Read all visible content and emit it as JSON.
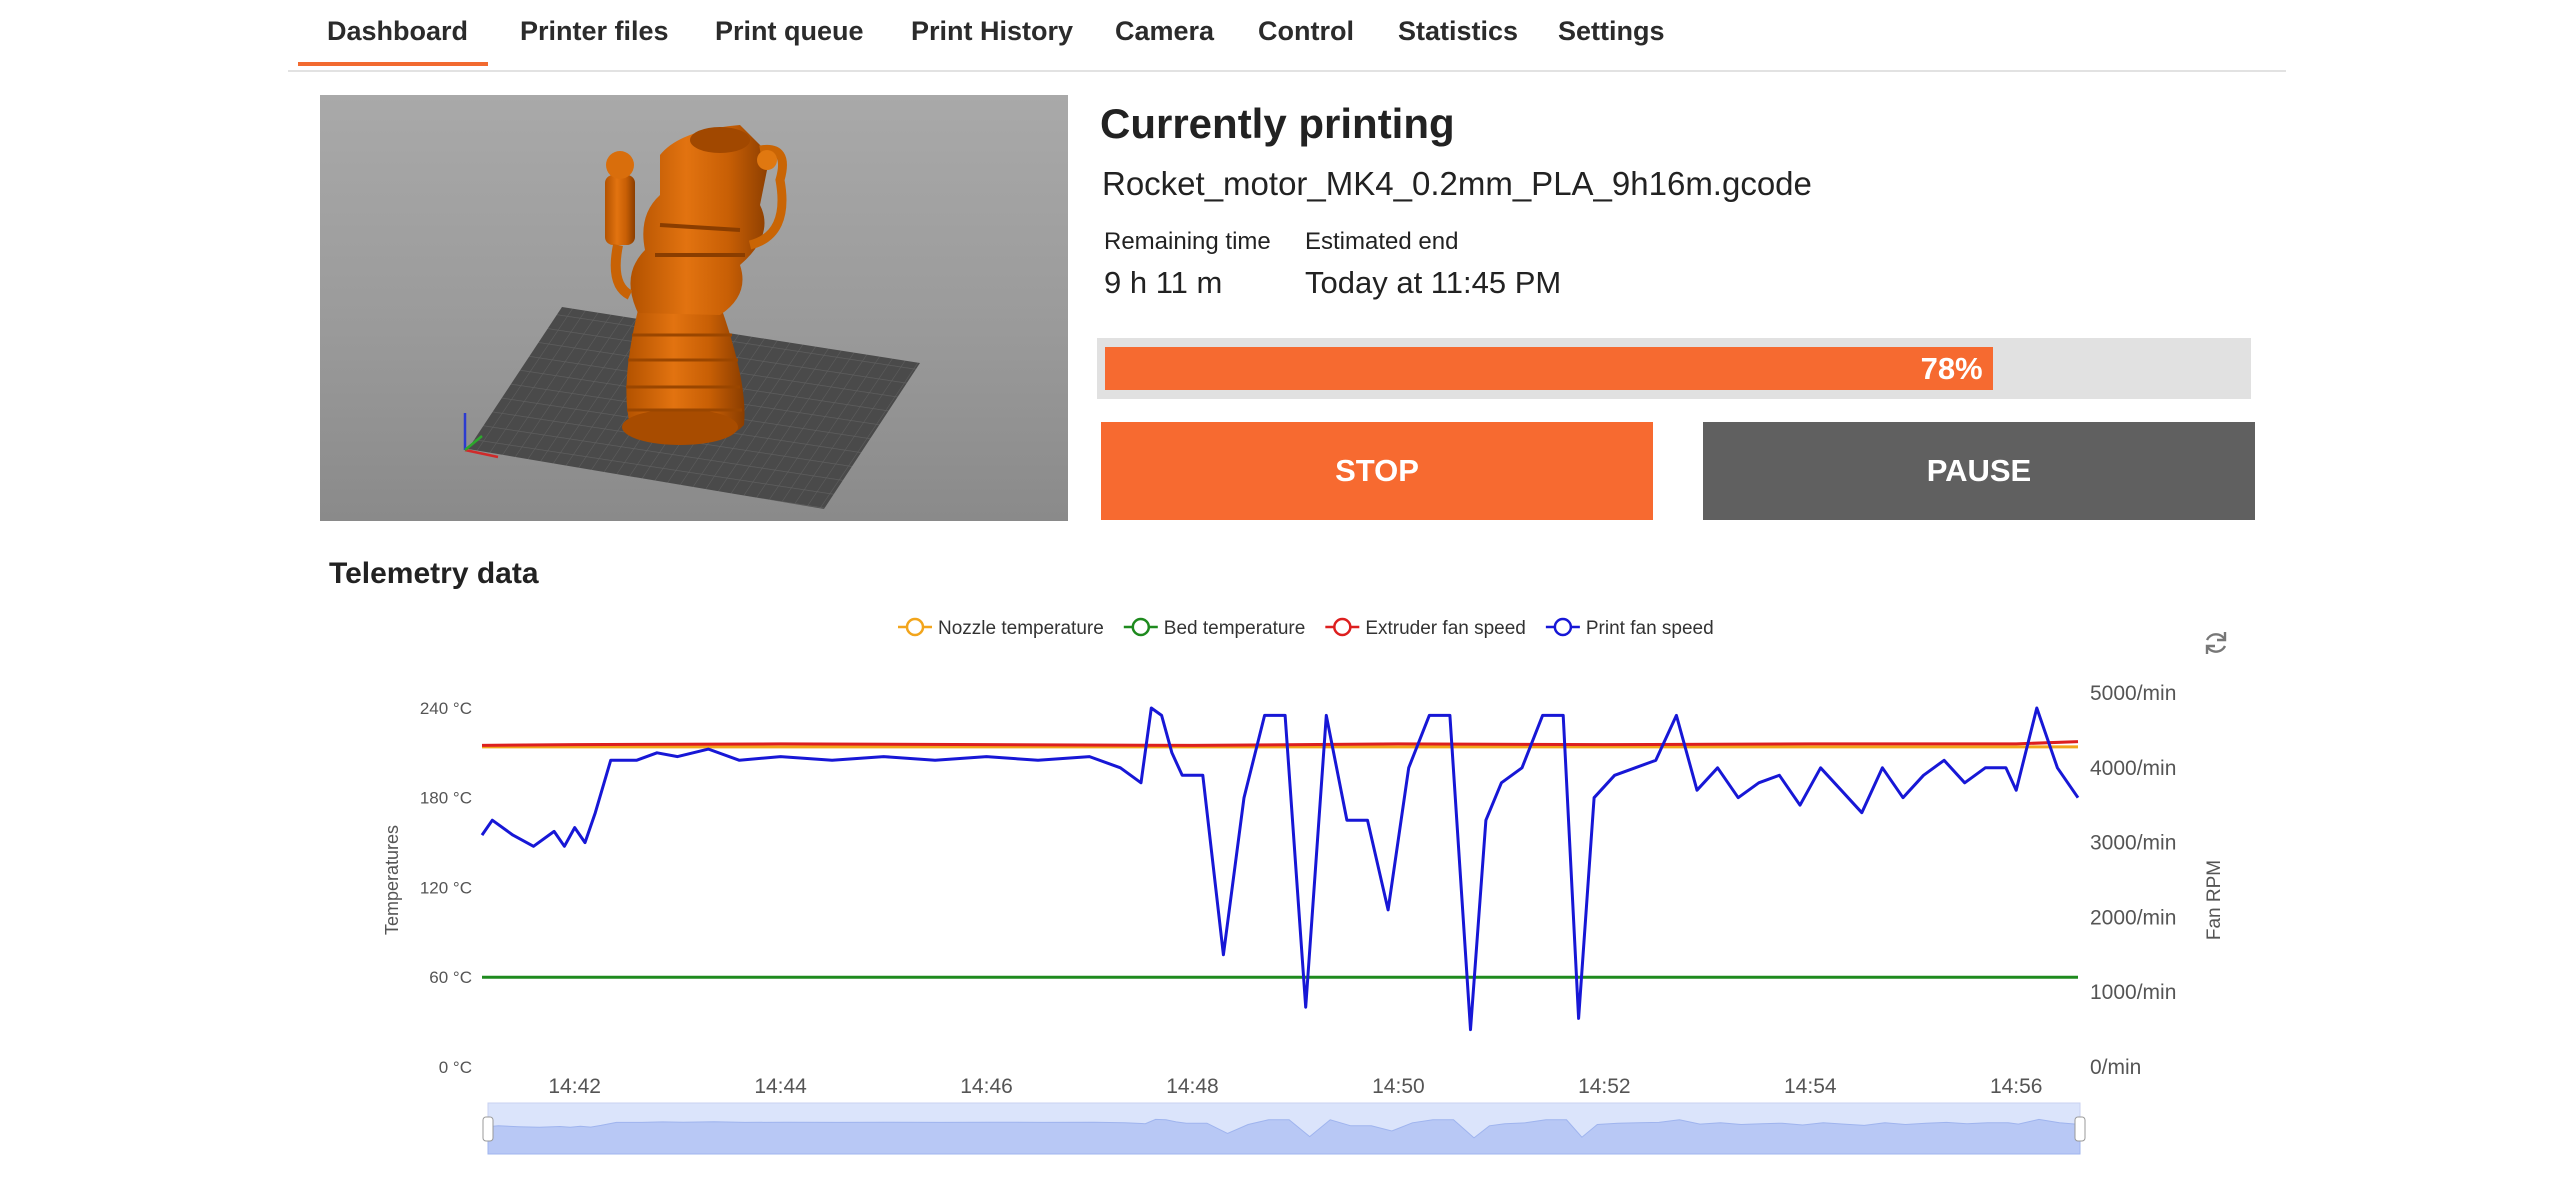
{
  "nav": {
    "tabs": [
      "Dashboard",
      "Printer files",
      "Print queue",
      "Print History",
      "Camera",
      "Control",
      "Statistics",
      "Settings"
    ],
    "active": "Dashboard"
  },
  "printing": {
    "title": "Currently  printing",
    "file": "Rocket_motor_MK4_0.2mm_PLA_9h16m.gcode",
    "remaining_label": "Remaining time",
    "remaining_value": "9 h 11 m",
    "end_label": "Estimated end",
    "end_value": "Today at 11:45 PM",
    "progress": 78,
    "progress_text": "78%"
  },
  "buttons": {
    "stop": "STOP",
    "pause": "PAUSE"
  },
  "telemetry": {
    "title": "Telemetry data"
  },
  "colors": {
    "accent": "#f66a30",
    "pause": "#606060",
    "nozzle": "#f2a51c",
    "bed": "#1e8a1e",
    "extruder_fan": "#dd1f1f",
    "print_fan": "#1717d6"
  },
  "chart_data": {
    "type": "line",
    "legend": [
      "Nozzle temperature",
      "Bed temperature",
      "Extruder fan speed",
      "Print fan speed"
    ],
    "legend_position": "top-center",
    "x_ticks": [
      "14:42",
      "14:44",
      "14:46",
      "14:48",
      "14:50",
      "14:52",
      "14:54",
      "14:56"
    ],
    "y_left": {
      "label": "Temperatures",
      "ticks": [
        "0 °C",
        "60 °C",
        "120 °C",
        "180 °C",
        "240 °C"
      ],
      "range": [
        0,
        250
      ]
    },
    "y_right": {
      "label": "Fan RPM",
      "ticks": [
        "0/min",
        "1000/min",
        "2000/min",
        "3000/min",
        "4000/min",
        "5000/min"
      ],
      "range": [
        0,
        5000
      ]
    },
    "x_range_minutes": [
      41.1,
      56.6
    ],
    "grid": true,
    "series": [
      {
        "name": "Nozzle temperature",
        "axis": "left",
        "x": [
          41.1,
          46.0,
          50.0,
          56.6
        ],
        "values": [
          214,
          214,
          214,
          214
        ]
      },
      {
        "name": "Bed temperature",
        "axis": "left",
        "x": [
          41.1,
          44.0,
          46.0,
          48.0,
          50.0,
          52.0,
          54.0,
          56.6
        ],
        "values": [
          60,
          60,
          60,
          60,
          60,
          60,
          60,
          60
        ]
      },
      {
        "name": "Extruder fan speed",
        "axis": "right",
        "x": [
          41.1,
          42.0,
          44.0,
          46.0,
          48.0,
          50.0,
          52.0,
          54.0,
          56.0,
          56.6
        ],
        "values": [
          4300,
          4310,
          4320,
          4310,
          4300,
          4320,
          4310,
          4320,
          4320,
          4350
        ]
      },
      {
        "name": "Print fan speed",
        "axis": "right",
        "x": [
          41.1,
          41.2,
          41.4,
          41.6,
          41.8,
          41.9,
          42.0,
          42.1,
          42.2,
          42.35,
          42.6,
          42.8,
          43.0,
          43.3,
          43.6,
          44.0,
          44.5,
          45.0,
          45.5,
          46.0,
          46.5,
          47.0,
          47.3,
          47.5,
          47.6,
          47.7,
          47.8,
          47.9,
          48.1,
          48.3,
          48.5,
          48.7,
          48.9,
          49.1,
          49.3,
          49.5,
          49.7,
          49.9,
          50.1,
          50.3,
          50.5,
          50.7,
          50.85,
          51.0,
          51.2,
          51.4,
          51.6,
          51.75,
          51.9,
          52.1,
          52.3,
          52.5,
          52.7,
          52.9,
          53.1,
          53.3,
          53.5,
          53.7,
          53.9,
          54.1,
          54.3,
          54.5,
          54.7,
          54.9,
          55.1,
          55.3,
          55.5,
          55.7,
          55.9,
          56.0,
          56.2,
          56.4,
          56.6
        ],
        "values": [
          3100,
          3300,
          3100,
          2950,
          3150,
          2950,
          3200,
          3000,
          3400,
          4100,
          4100,
          4200,
          4150,
          4250,
          4100,
          4150,
          4100,
          4150,
          4100,
          4150,
          4100,
          4150,
          4000,
          3800,
          4800,
          4700,
          4200,
          3900,
          3900,
          1500,
          3600,
          4700,
          4700,
          800,
          4700,
          3300,
          3300,
          2100,
          4000,
          4700,
          4700,
          500,
          3300,
          3800,
          4000,
          4700,
          4700,
          650,
          3600,
          3900,
          4000,
          4100,
          4700,
          3700,
          4000,
          3600,
          3800,
          3900,
          3500,
          4000,
          3700,
          3400,
          4000,
          3600,
          3900,
          4100,
          3800,
          4000,
          4000,
          3700,
          4800,
          4000,
          3600
        ]
      }
    ]
  }
}
